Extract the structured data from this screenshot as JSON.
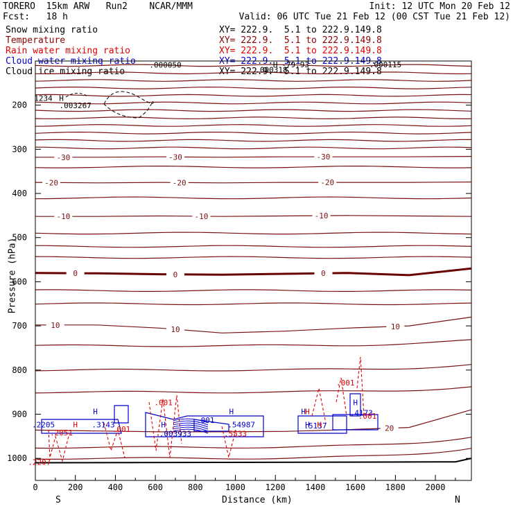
{
  "header": {
    "left1": "TORERO  15km ARW   Run2    NCAR/MMM",
    "left2": "Fcst:   18 h",
    "right1": "Init: 12 UTC Mon 20 Feb 12",
    "right2": "Valid: 06 UTC Tue 21 Feb 12 (00 CST Tue 21 Feb 12)"
  },
  "legend": [
    {
      "name": "Snow mixing ratio",
      "xy": "XY= 222.9.  5.1 to 222.9.149.8",
      "color": "#000000"
    },
    {
      "name": "Temperature",
      "xy": "XY= 222.9.  5.1 to 222.9.149.8",
      "color": "#8b0000"
    },
    {
      "name": "Rain water mixing ratio",
      "xy": "XY= 222.9.  5.1 to 222.9.149.8",
      "color": "#e00000"
    },
    {
      "name": "Cloud water mixing ratio",
      "xy": "XY= 222.9.  5.1 to 222.9.149.8",
      "color": "#0000cc"
    },
    {
      "name": "Cloud ice mixing ratio",
      "xy": "XY= 222.9.  5.1 to 222.9.149.8",
      "color": "#000000"
    }
  ],
  "chart_data": {
    "type": "contour",
    "xlabel": "Distance (km)",
    "ylabel": "Pressure (hPa)",
    "xlim": [
      0,
      2180
    ],
    "ylim": [
      1050,
      100
    ],
    "x_ticks": [
      0,
      200,
      400,
      600,
      800,
      1000,
      1200,
      1400,
      1600,
      1800,
      2000
    ],
    "y_ticks": [
      200,
      300,
      400,
      500,
      600,
      700,
      800,
      900,
      1000
    ],
    "y_tick_labels": [
      "200",
      "300",
      "400",
      "500",
      "600",
      "700",
      "800",
      "900",
      "1000"
    ],
    "end_labels": {
      "left": "S",
      "right": "N"
    },
    "temperature_contours": [
      {
        "label": "-30",
        "p": [
          318,
          318,
          317,
          318,
          317,
          317,
          317,
          316
        ],
        "label_x": [
          140,
          700,
          1440
        ]
      },
      {
        "label": "-20",
        "p": [
          375,
          376,
          375,
          376,
          375,
          375,
          375,
          374
        ],
        "label_x": [
          80,
          720,
          1460
        ]
      },
      {
        "label": "-10",
        "p": [
          452,
          452,
          451,
          452,
          451,
          450,
          451,
          452
        ],
        "label_x": [
          140,
          830,
          1430
        ]
      },
      {
        "label": "0",
        "p": [
          580,
          581,
          583,
          584,
          582,
          580,
          585,
          570
        ],
        "label_x": [
          200,
          700,
          1440
        ],
        "bold": true
      },
      {
        "label": "10",
        "p": [
          698,
          698,
          705,
          716,
          712,
          705,
          700,
          680
        ],
        "label_x": [
          100,
          700,
          1800
        ]
      },
      {
        "label": "20",
        "p": [
          936,
          938,
          940,
          940,
          939,
          935,
          930,
          890
        ],
        "label_x": [
          1770
        ]
      }
    ],
    "value_labels": [
      {
        "text": "H",
        "x": 130,
        "p": 190,
        "color": "#000000"
      },
      {
        "text": ".003267",
        "x": 200,
        "p": 207,
        "color": "#000000"
      },
      {
        "text": "1234",
        "x": 40,
        "p": 190,
        "color": "#000000"
      },
      {
        "text": ".000050",
        "x": 650,
        "p": 115,
        "color": "#000000"
      },
      {
        "text": ".000115",
        "x": 1750,
        "p": 114,
        "color": "#000000"
      },
      {
        "text": ".000318",
        "x": 1180,
        "p": 126,
        "color": "#000000"
      },
      {
        "text": "H",
        "x": 1200,
        "p": 114,
        "color": "#000000"
      },
      {
        "text": "-79.93",
        "x": 1300,
        "p": 114,
        "color": "#000000"
      },
      {
        "text": "H",
        "x": 300,
        "p": 900,
        "color": "#0000cc"
      },
      {
        "text": ".3143",
        "x": 340,
        "p": 930,
        "color": "#0000cc"
      },
      {
        "text": "H",
        "x": 640,
        "p": 930,
        "color": "#0000cc"
      },
      {
        "text": ".003933",
        "x": 700,
        "p": 950,
        "color": "#0000cc"
      },
      {
        "text": ".001",
        "x": 850,
        "p": 920,
        "color": "#0000cc"
      },
      {
        "text": "H",
        "x": 980,
        "p": 900,
        "color": "#0000cc"
      },
      {
        "text": ".54987",
        "x": 1030,
        "p": 930,
        "color": "#0000cc"
      },
      {
        "text": "H",
        "x": 1340,
        "p": 900,
        "color": "#0000cc"
      },
      {
        "text": "H",
        "x": 1360,
        "p": 930,
        "color": "#0000cc"
      },
      {
        "text": ".5137",
        "x": 1400,
        "p": 932,
        "color": "#0000cc"
      },
      {
        "text": "H",
        "x": 1600,
        "p": 880,
        "color": "#0000cc"
      },
      {
        "text": ".4173",
        "x": 1630,
        "p": 903,
        "color": "#0000cc"
      },
      {
        "text": ".2205",
        "x": 40,
        "p": 930,
        "color": "#0000cc"
      },
      {
        "text": "H",
        "x": 200,
        "p": 930,
        "color": "#e00000"
      },
      {
        "text": ".001",
        "x": 430,
        "p": 940,
        "color": "#e00000"
      },
      {
        "text": ".001",
        "x": 640,
        "p": 880,
        "color": "#e00000"
      },
      {
        "text": ".001",
        "x": 1550,
        "p": 835,
        "color": "#e00000"
      },
      {
        "text": ".2051",
        "x": 130,
        "p": 948,
        "color": "#e00000"
      },
      {
        "text": ".5533",
        "x": 1000,
        "p": 950,
        "color": "#e00000"
      },
      {
        "text": "H",
        "x": 1360,
        "p": 900,
        "color": "#e00000"
      },
      {
        "text": "H",
        "x": 1420,
        "p": 930,
        "color": "#e00000"
      },
      {
        "text": ".001",
        "x": 1660,
        "p": 910,
        "color": "#e00000"
      },
      {
        "text": ".2207",
        "x": 20,
        "p": 1015,
        "color": "#e00000"
      }
    ]
  }
}
